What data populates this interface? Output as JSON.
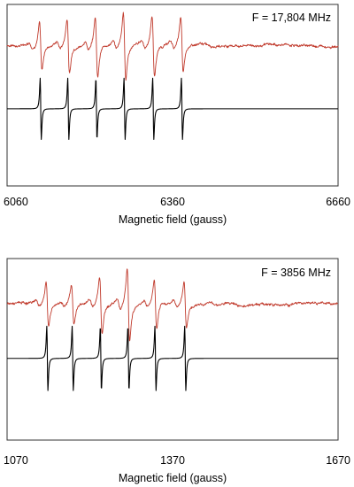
{
  "chart_data": [
    {
      "type": "line",
      "title": "",
      "annotation": "F = 17,804 MHz",
      "xlabel": "Magnetic field (gauss)",
      "ylabel": "",
      "xlim": [
        6060,
        6660
      ],
      "x_ticks": [
        "6060",
        "6360",
        "6660"
      ],
      "ylim": [
        -1,
        1
      ],
      "grid": false,
      "series": [
        {
          "color": "#c0392b",
          "peak_centers": [
            6121,
            6171,
            6222,
            6273,
            6325,
            6377
          ],
          "amplitudes": [
            0.32,
            0.36,
            0.4,
            0.44,
            0.4,
            0.36
          ],
          "baseline": 0.55
        },
        {
          "color": "#000000",
          "peak_centers": [
            6121,
            6171,
            6222,
            6273,
            6325,
            6377
          ],
          "amplitudes": [
            0.4,
            0.4,
            0.4,
            0.4,
            0.4,
            0.4
          ],
          "baseline": -0.15
        }
      ]
    },
    {
      "type": "line",
      "title": "",
      "annotation": "F = 3856 MHz",
      "xlabel": "Magnetic field (gauss)",
      "ylabel": "",
      "xlim": [
        1070,
        1670
      ],
      "x_ticks": [
        "1070",
        "1370",
        "1670"
      ],
      "ylim": [
        -1,
        1
      ],
      "grid": false,
      "series": [
        {
          "color": "#c0392b",
          "peak_centers": [
            1143,
            1189,
            1240,
            1290,
            1339,
            1393
          ],
          "amplitudes": [
            0.3,
            0.26,
            0.36,
            0.48,
            0.32,
            0.3
          ],
          "baseline": 0.5
        },
        {
          "color": "#000000",
          "peak_centers": [
            1143,
            1189,
            1240,
            1290,
            1339,
            1393
          ],
          "amplitudes": [
            0.42,
            0.42,
            0.42,
            0.42,
            0.42,
            0.42
          ],
          "baseline": -0.1
        }
      ]
    }
  ]
}
